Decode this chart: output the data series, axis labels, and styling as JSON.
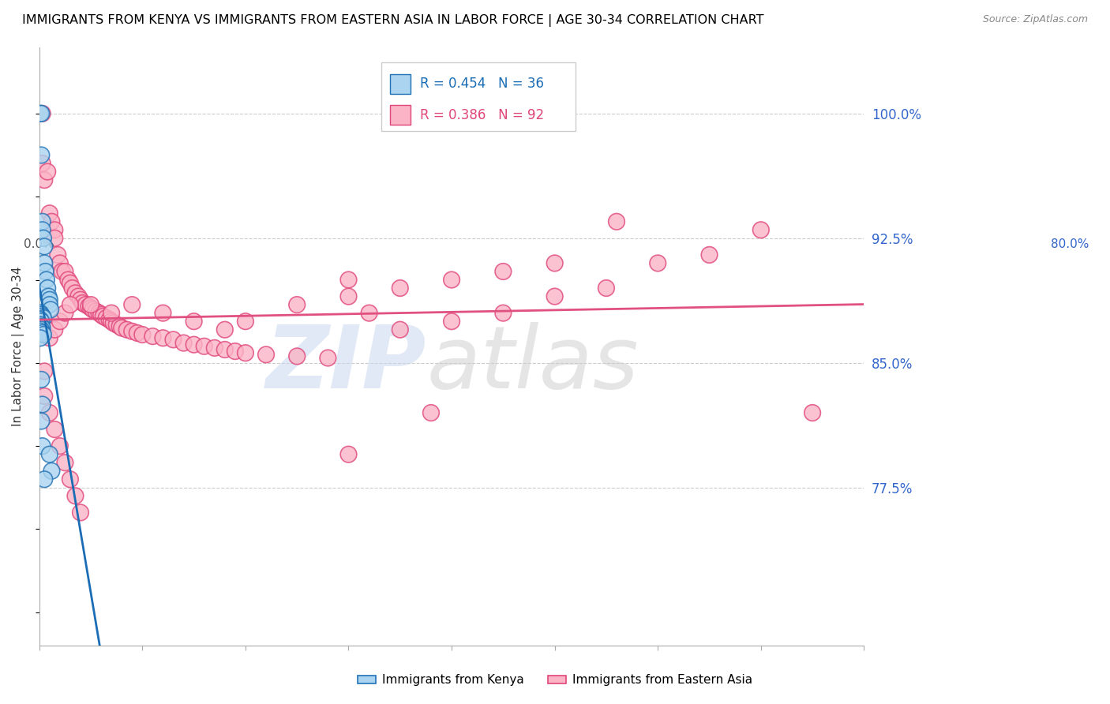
{
  "title": "IMMIGRANTS FROM KENYA VS IMMIGRANTS FROM EASTERN ASIA IN LABOR FORCE | AGE 30-34 CORRELATION CHART",
  "source": "Source: ZipAtlas.com",
  "ylabel": "In Labor Force | Age 30-34",
  "ytick_labels": [
    "100.0%",
    "92.5%",
    "85.0%",
    "77.5%"
  ],
  "ytick_values": [
    1.0,
    0.925,
    0.85,
    0.775
  ],
  "kenya_face_color": "#aad4ef",
  "east_asia_face_color": "#fbb4c6",
  "kenya_edge_color": "#2171b5",
  "east_asia_edge_color": "#e0457a",
  "kenya_line_color": "#1a6db5",
  "east_asia_line_color": "#e05080",
  "xlim": [
    0.0,
    0.8
  ],
  "ylim": [
    0.68,
    1.04
  ],
  "figsize": [
    14.06,
    8.92
  ],
  "dpi": 100,
  "kenya_scatter_x": [
    0.001,
    0.002,
    0.002,
    0.003,
    0.003,
    0.004,
    0.005,
    0.005,
    0.006,
    0.007,
    0.008,
    0.009,
    0.01,
    0.01,
    0.011,
    0.001,
    0.002,
    0.003,
    0.004,
    0.001,
    0.002,
    0.001,
    0.002,
    0.003,
    0.002,
    0.001,
    0.003,
    0.004,
    0.001,
    0.002,
    0.003,
    0.002,
    0.003,
    0.01,
    0.012,
    0.005
  ],
  "kenya_scatter_y": [
    1.0,
    1.0,
    0.975,
    0.935,
    0.93,
    0.925,
    0.92,
    0.91,
    0.905,
    0.9,
    0.895,
    0.89,
    0.888,
    0.885,
    0.882,
    0.88,
    0.879,
    0.878,
    0.877,
    0.876,
    0.875,
    0.873,
    0.872,
    0.871,
    0.87,
    0.869,
    0.868,
    0.867,
    0.865,
    0.84,
    0.825,
    0.815,
    0.8,
    0.795,
    0.785,
    0.78
  ],
  "east_asia_scatter_x": [
    0.003,
    0.005,
    0.008,
    0.01,
    0.012,
    0.015,
    0.015,
    0.018,
    0.02,
    0.022,
    0.025,
    0.028,
    0.03,
    0.032,
    0.035,
    0.038,
    0.04,
    0.042,
    0.045,
    0.048,
    0.05,
    0.052,
    0.055,
    0.058,
    0.06,
    0.062,
    0.065,
    0.068,
    0.07,
    0.072,
    0.075,
    0.078,
    0.08,
    0.085,
    0.09,
    0.095,
    0.1,
    0.11,
    0.12,
    0.13,
    0.14,
    0.15,
    0.16,
    0.17,
    0.18,
    0.19,
    0.2,
    0.22,
    0.25,
    0.28,
    0.3,
    0.32,
    0.35,
    0.4,
    0.45,
    0.5,
    0.55,
    0.6,
    0.65,
    0.7,
    0.005,
    0.01,
    0.015,
    0.02,
    0.025,
    0.03,
    0.035,
    0.04,
    0.005,
    0.01,
    0.015,
    0.02,
    0.025,
    0.03,
    0.05,
    0.07,
    0.09,
    0.12,
    0.15,
    0.18,
    0.2,
    0.25,
    0.3,
    0.35,
    0.4,
    0.45,
    0.5,
    0.56,
    0.75,
    0.003,
    0.38,
    0.3
  ],
  "east_asia_scatter_y": [
    0.97,
    0.96,
    0.965,
    0.94,
    0.935,
    0.93,
    0.925,
    0.915,
    0.91,
    0.905,
    0.905,
    0.9,
    0.898,
    0.895,
    0.892,
    0.89,
    0.888,
    0.886,
    0.885,
    0.884,
    0.883,
    0.882,
    0.881,
    0.88,
    0.879,
    0.878,
    0.877,
    0.876,
    0.875,
    0.874,
    0.873,
    0.872,
    0.871,
    0.87,
    0.869,
    0.868,
    0.867,
    0.866,
    0.865,
    0.864,
    0.862,
    0.861,
    0.86,
    0.859,
    0.858,
    0.857,
    0.856,
    0.855,
    0.854,
    0.853,
    0.9,
    0.88,
    0.87,
    0.875,
    0.88,
    0.89,
    0.895,
    0.91,
    0.915,
    0.93,
    0.83,
    0.82,
    0.81,
    0.8,
    0.79,
    0.78,
    0.77,
    0.76,
    0.845,
    0.865,
    0.87,
    0.875,
    0.88,
    0.885,
    0.885,
    0.88,
    0.885,
    0.88,
    0.875,
    0.87,
    0.875,
    0.885,
    0.89,
    0.895,
    0.9,
    0.905,
    0.91,
    0.935,
    0.82,
    1.0,
    0.82,
    0.795
  ]
}
